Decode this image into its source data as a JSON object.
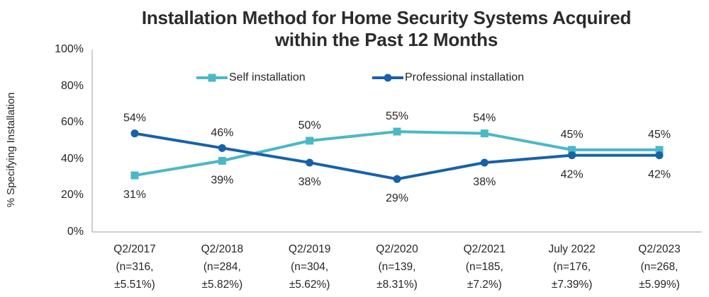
{
  "title_lines": [
    "Installation Method for Home Security Systems Acquired",
    "within the Past 12 Months"
  ],
  "chart_data": {
    "type": "line",
    "title": "Installation Method for Home Security Systems Acquired within the Past 12 Months",
    "xlabel": "",
    "ylabel": "% Specifying Installation",
    "ylim": [
      0,
      100
    ],
    "grid": false,
    "legend_position": "top-inside",
    "axis_color": "#BFBFBF",
    "text_color": "#262626",
    "ytick_values": [
      0,
      20,
      40,
      60,
      80,
      100
    ],
    "ytick_labels": [
      "0%",
      "20%",
      "40%",
      "60%",
      "80%",
      "100%"
    ],
    "categories": [
      [
        "Q2/2017",
        "(n=316,",
        "±5.51%)"
      ],
      [
        "Q2/2018",
        "(n=284,",
        "±5.82%)"
      ],
      [
        "Q2/2019",
        "(n=304,",
        "±5.62%)"
      ],
      [
        "Q2/2020",
        "(n=139,",
        "±8.31%)"
      ],
      [
        "Q2/2021",
        "(n=185,",
        "±7.2%)"
      ],
      [
        "July 2022",
        "(n=176,",
        "±7.39%)"
      ],
      [
        "Q2/2023",
        "(n=268,",
        "±5.99%)"
      ]
    ],
    "series": [
      {
        "name": "Self installation",
        "color": "#4BB8C5",
        "marker": "square",
        "values": [
          31,
          39,
          50,
          55,
          54,
          45,
          45
        ],
        "labels": [
          "31%",
          "39%",
          "50%",
          "55%",
          "54%",
          "45%",
          "45%"
        ],
        "label_positions": [
          "below",
          "below",
          "above",
          "above",
          "above",
          "above",
          "above"
        ]
      },
      {
        "name": "Professional installation",
        "color": "#1761A9",
        "marker": "circle",
        "values": [
          54,
          46,
          38,
          29,
          38,
          42,
          42
        ],
        "labels": [
          "54%",
          "46%",
          "38%",
          "29%",
          "38%",
          "42%",
          "42%"
        ],
        "label_positions": [
          "above",
          "above",
          "below",
          "below",
          "below",
          "below",
          "below"
        ]
      }
    ]
  }
}
